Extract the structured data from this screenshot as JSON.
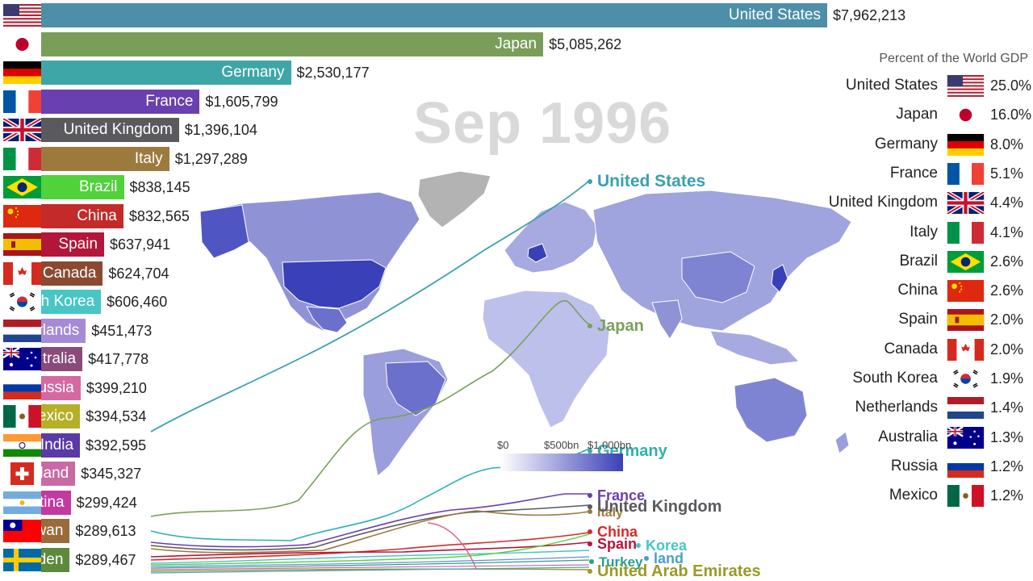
{
  "date": "Sep 1996",
  "share_title": "Percent of the World GDP",
  "legend": {
    "ticks": [
      "$0",
      "$500bn",
      "$1,000bn"
    ]
  },
  "chart_data": {
    "type": "bar",
    "title": "",
    "unit": "$",
    "series": [
      {
        "country": "United States",
        "label": "United States",
        "value": 7962213,
        "value_text": "$7,962,213",
        "color": "#4d8fa8",
        "flag": "us"
      },
      {
        "country": "Japan",
        "label": "Japan",
        "value": 5085262,
        "value_text": "$5,085,262",
        "color": "#7a9e5a",
        "flag": "jp"
      },
      {
        "country": "Germany",
        "label": "Germany",
        "value": 2530177,
        "value_text": "$2,530,177",
        "color": "#3fa6a8",
        "flag": "de"
      },
      {
        "country": "France",
        "label": "France",
        "value": 1605799,
        "value_text": "$1,605,799",
        "color": "#6a3fb0",
        "flag": "fr"
      },
      {
        "country": "United Kingdom",
        "label": "United Kingdom",
        "value": 1396104,
        "value_text": "$1,396,104",
        "color": "#5a5a5e",
        "flag": "gb"
      },
      {
        "country": "Italy",
        "label": "Italy",
        "value": 1297289,
        "value_text": "$1,297,289",
        "color": "#9c7a3e",
        "flag": "it"
      },
      {
        "country": "Brazil",
        "label": "Brazil",
        "value": 838145,
        "value_text": "$838,145",
        "color": "#4fd23a",
        "flag": "br"
      },
      {
        "country": "China",
        "label": "China",
        "value": 832565,
        "value_text": "$832,565",
        "color": "#c42a2a",
        "flag": "cn"
      },
      {
        "country": "Spain",
        "label": "Spain",
        "value": 637941,
        "value_text": "$637,941",
        "color": "#b3163a",
        "flag": "es"
      },
      {
        "country": "Canada",
        "label": "Canada",
        "value": 624704,
        "value_text": "$624,704",
        "color": "#8a4a32",
        "flag": "ca"
      },
      {
        "country": "South Korea",
        "label": "th Korea",
        "value": 606460,
        "value_text": "$606,460",
        "color": "#48c6c6",
        "flag": "kr"
      },
      {
        "country": "Netherlands",
        "label": "rlands",
        "value": 451473,
        "value_text": "$451,473",
        "color": "#a68ad6",
        "flag": "nl"
      },
      {
        "country": "Australia",
        "label": "tralia",
        "value": 417778,
        "value_text": "$417,778",
        "color": "#8a4a7a",
        "flag": "au"
      },
      {
        "country": "Russia",
        "label": "ussia",
        "value": 399210,
        "value_text": "$399,210",
        "color": "#d46aa0",
        "flag": "ru"
      },
      {
        "country": "Mexico",
        "label": "exico",
        "value": 394534,
        "value_text": "$394,534",
        "color": "#b5b028",
        "flag": "mx"
      },
      {
        "country": "India",
        "label": "India",
        "value": 392595,
        "value_text": "$392,595",
        "color": "#5a3aa6",
        "flag": "in"
      },
      {
        "country": "Switzerland",
        "label": "land",
        "value": 345327,
        "value_text": "$345,327",
        "color": "#c86aa6",
        "flag": "ch"
      },
      {
        "country": "Argentina",
        "label": "tina",
        "value": 299424,
        "value_text": "$299,424",
        "color": "#c23aa0",
        "flag": "ar"
      },
      {
        "country": "Taiwan",
        "label": "wan",
        "value": 289613,
        "value_text": "$289,613",
        "color": "#9a6a3a",
        "flag": "tw"
      },
      {
        "country": "Sweden",
        "label": "den",
        "value": 289467,
        "value_text": "$289,467",
        "color": "#5c8a3a",
        "flag": "se"
      }
    ],
    "world_share": [
      {
        "name": "United States",
        "pct": "25.0%",
        "flag": "us"
      },
      {
        "name": "Japan",
        "pct": "16.0%",
        "flag": "jp"
      },
      {
        "name": "Germany",
        "pct": "8.0%",
        "flag": "de"
      },
      {
        "name": "France",
        "pct": "5.1%",
        "flag": "fr"
      },
      {
        "name": "United Kingdom",
        "pct": "4.4%",
        "flag": "gb"
      },
      {
        "name": "Italy",
        "pct": "4.1%",
        "flag": "it"
      },
      {
        "name": "Brazil",
        "pct": "2.6%",
        "flag": "br"
      },
      {
        "name": "China",
        "pct": "2.6%",
        "flag": "cn"
      },
      {
        "name": "Spain",
        "pct": "2.0%",
        "flag": "es"
      },
      {
        "name": "Canada",
        "pct": "2.0%",
        "flag": "ca"
      },
      {
        "name": "South Korea",
        "pct": "1.9%",
        "flag": "kr"
      },
      {
        "name": "Netherlands",
        "pct": "1.4%",
        "flag": "nl"
      },
      {
        "name": "Australia",
        "pct": "1.3%",
        "flag": "au"
      },
      {
        "name": "Russia",
        "pct": "1.2%",
        "flag": "ru"
      },
      {
        "name": "Mexico",
        "pct": "1.2%",
        "flag": "mx"
      }
    ],
    "line_labels": [
      {
        "name": "United States",
        "color": "#3aa0b0"
      },
      {
        "name": "Japan",
        "color": "#7aa05a"
      },
      {
        "name": "Germany",
        "color": "#2fb0b0"
      },
      {
        "name": "France",
        "color": "#6a3fb0"
      },
      {
        "name": "Italy",
        "color": "#9c7a3e"
      },
      {
        "name": "United Kingdom",
        "color": "#5a5a5e"
      },
      {
        "name": "China",
        "color": "#d42a2a"
      },
      {
        "name": "Spain",
        "color": "#b3163a"
      },
      {
        "name": "Korea",
        "color": "#48c6c6"
      },
      {
        "name": "Turkey",
        "color": "#2aa08a"
      },
      {
        "name": "land",
        "color": "#48a0c6"
      },
      {
        "name": "United Arab Emirates",
        "color": "#9a9a28"
      }
    ]
  }
}
